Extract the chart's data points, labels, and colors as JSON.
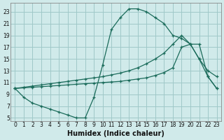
{
  "background_color": "#d0eaea",
  "grid_color": "#a0c8c8",
  "line_color": "#1a6b5a",
  "xlabel": "Humidex (Indice chaleur)",
  "xlim": [
    -0.5,
    23.5
  ],
  "ylim": [
    4.5,
    24.5
  ],
  "xticks": [
    0,
    1,
    2,
    3,
    4,
    5,
    6,
    7,
    8,
    9,
    10,
    11,
    12,
    13,
    14,
    15,
    16,
    17,
    18,
    19,
    20,
    21,
    22,
    23
  ],
  "yticks": [
    5,
    7,
    9,
    11,
    13,
    15,
    17,
    19,
    21,
    23
  ],
  "curve1_x": [
    0,
    1,
    2,
    3,
    4,
    5,
    6,
    7,
    8,
    9,
    10,
    11,
    12,
    13,
    14,
    15,
    16,
    17,
    18,
    19,
    20,
    21,
    22,
    23
  ],
  "curve1_y": [
    10,
    8.5,
    7.5,
    7.0,
    6.5,
    6.0,
    5.5,
    5.0,
    5.0,
    8.5,
    14.0,
    20.0,
    22.0,
    23.5,
    23.5,
    23.0,
    22.0,
    21.0,
    19.0,
    18.5,
    17.5,
    15.0,
    12.0,
    10.0
  ],
  "curve2_x": [
    0,
    1,
    2,
    3,
    4,
    5,
    6,
    7,
    8,
    9,
    10,
    11,
    12,
    13,
    14,
    15,
    16,
    17,
    18,
    19,
    20,
    21,
    22,
    23
  ],
  "curve2_y": [
    10,
    10.2,
    10.4,
    10.6,
    10.8,
    11.0,
    11.2,
    11.4,
    11.6,
    11.8,
    12.0,
    12.3,
    12.6,
    13.0,
    13.5,
    14.2,
    15.0,
    16.0,
    17.5,
    19.0,
    17.5,
    15.0,
    13.0,
    12.0
  ],
  "curve3_x": [
    0,
    1,
    2,
    3,
    4,
    5,
    6,
    7,
    8,
    9,
    10,
    11,
    12,
    13,
    14,
    15,
    16,
    17,
    18,
    19,
    20,
    21,
    22,
    23
  ],
  "curve3_y": [
    10,
    10.1,
    10.2,
    10.3,
    10.4,
    10.5,
    10.6,
    10.7,
    10.8,
    10.9,
    11.0,
    11.1,
    11.2,
    11.4,
    11.6,
    11.8,
    12.2,
    12.7,
    13.5,
    17.0,
    17.5,
    17.5,
    12.0,
    10.0
  ]
}
